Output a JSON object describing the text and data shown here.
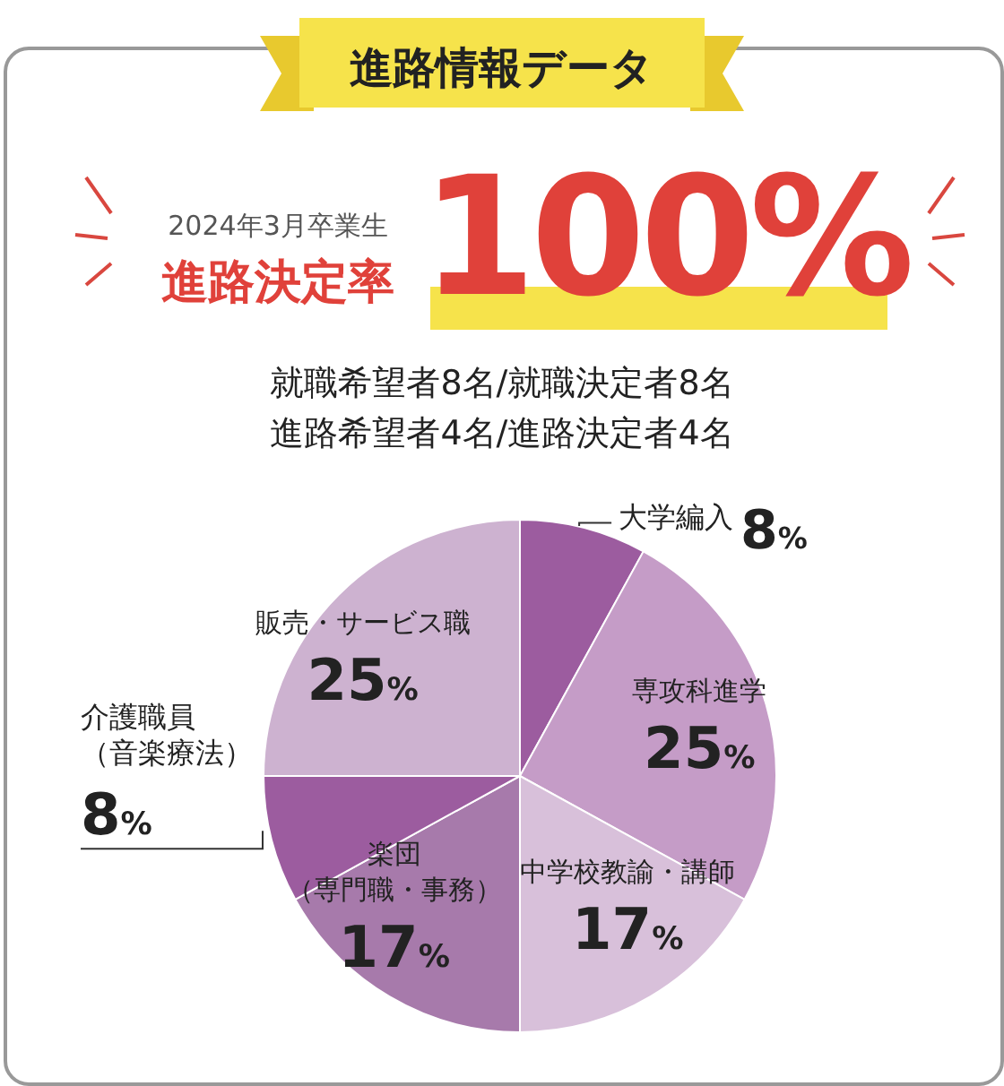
{
  "chart_data": {
    "type": "pie",
    "title": "進路情報データ",
    "subtitle": "2024年3月卒業生",
    "annotations": [
      "進路決定率",
      "100%",
      "就職希望者8名/就職決定者8名",
      "進路希望者4名/進路決定者4名"
    ],
    "categories": [
      "大学編入",
      "専攻科進学",
      "中学校教諭・講師",
      "楽団（専門職・事務）",
      "介護職員（音楽療法）",
      "販売・サービス職"
    ],
    "values": [
      8,
      25,
      17,
      17,
      8,
      25
    ],
    "value_labels": [
      "8%",
      "25%",
      "17%",
      "17%",
      "8%",
      "25%"
    ],
    "colors": [
      "#9c5c9f",
      "#c59cc7",
      "#d8c0da",
      "#a77aab",
      "#9c5c9f",
      "#cdb2d0"
    ]
  }
}
